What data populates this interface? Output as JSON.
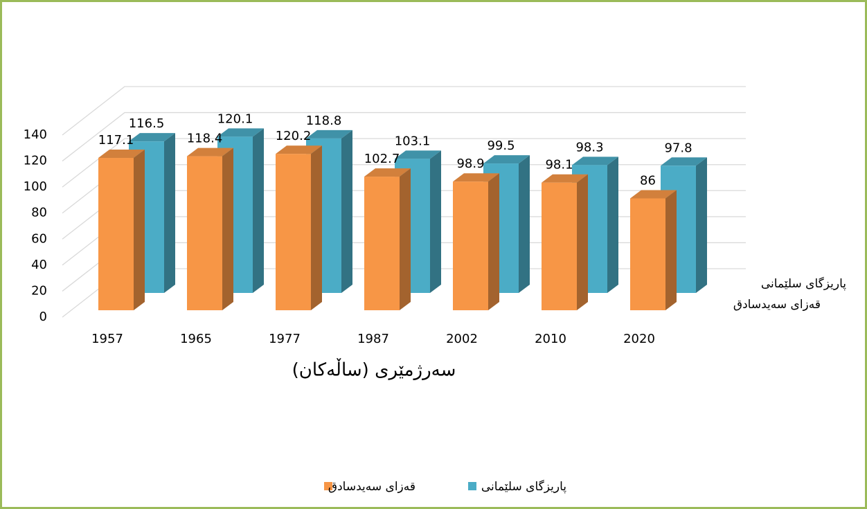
{
  "chart_data": {
    "type": "bar3d",
    "categories": [
      "1957",
      "1965",
      "1977",
      "1987",
      "2002",
      "2010",
      "2020"
    ],
    "series": [
      {
        "name": "قەزای سەیدسادق",
        "color": "#f79646",
        "values": [
          117.1,
          118.4,
          120.2,
          102.7,
          98.9,
          98.1,
          86
        ]
      },
      {
        "name": "پاریزگای سلێمانی",
        "color": "#4bacc6",
        "values": [
          116.5,
          120.1,
          118.8,
          103.1,
          99.5,
          98.3,
          97.8
        ]
      }
    ],
    "x_label": "سەرژمێری (ساڵەکان)",
    "ylim": [
      0,
      140
    ],
    "yticks": [
      0,
      20,
      40,
      60,
      80,
      100,
      120,
      140
    ],
    "grid": true
  }
}
